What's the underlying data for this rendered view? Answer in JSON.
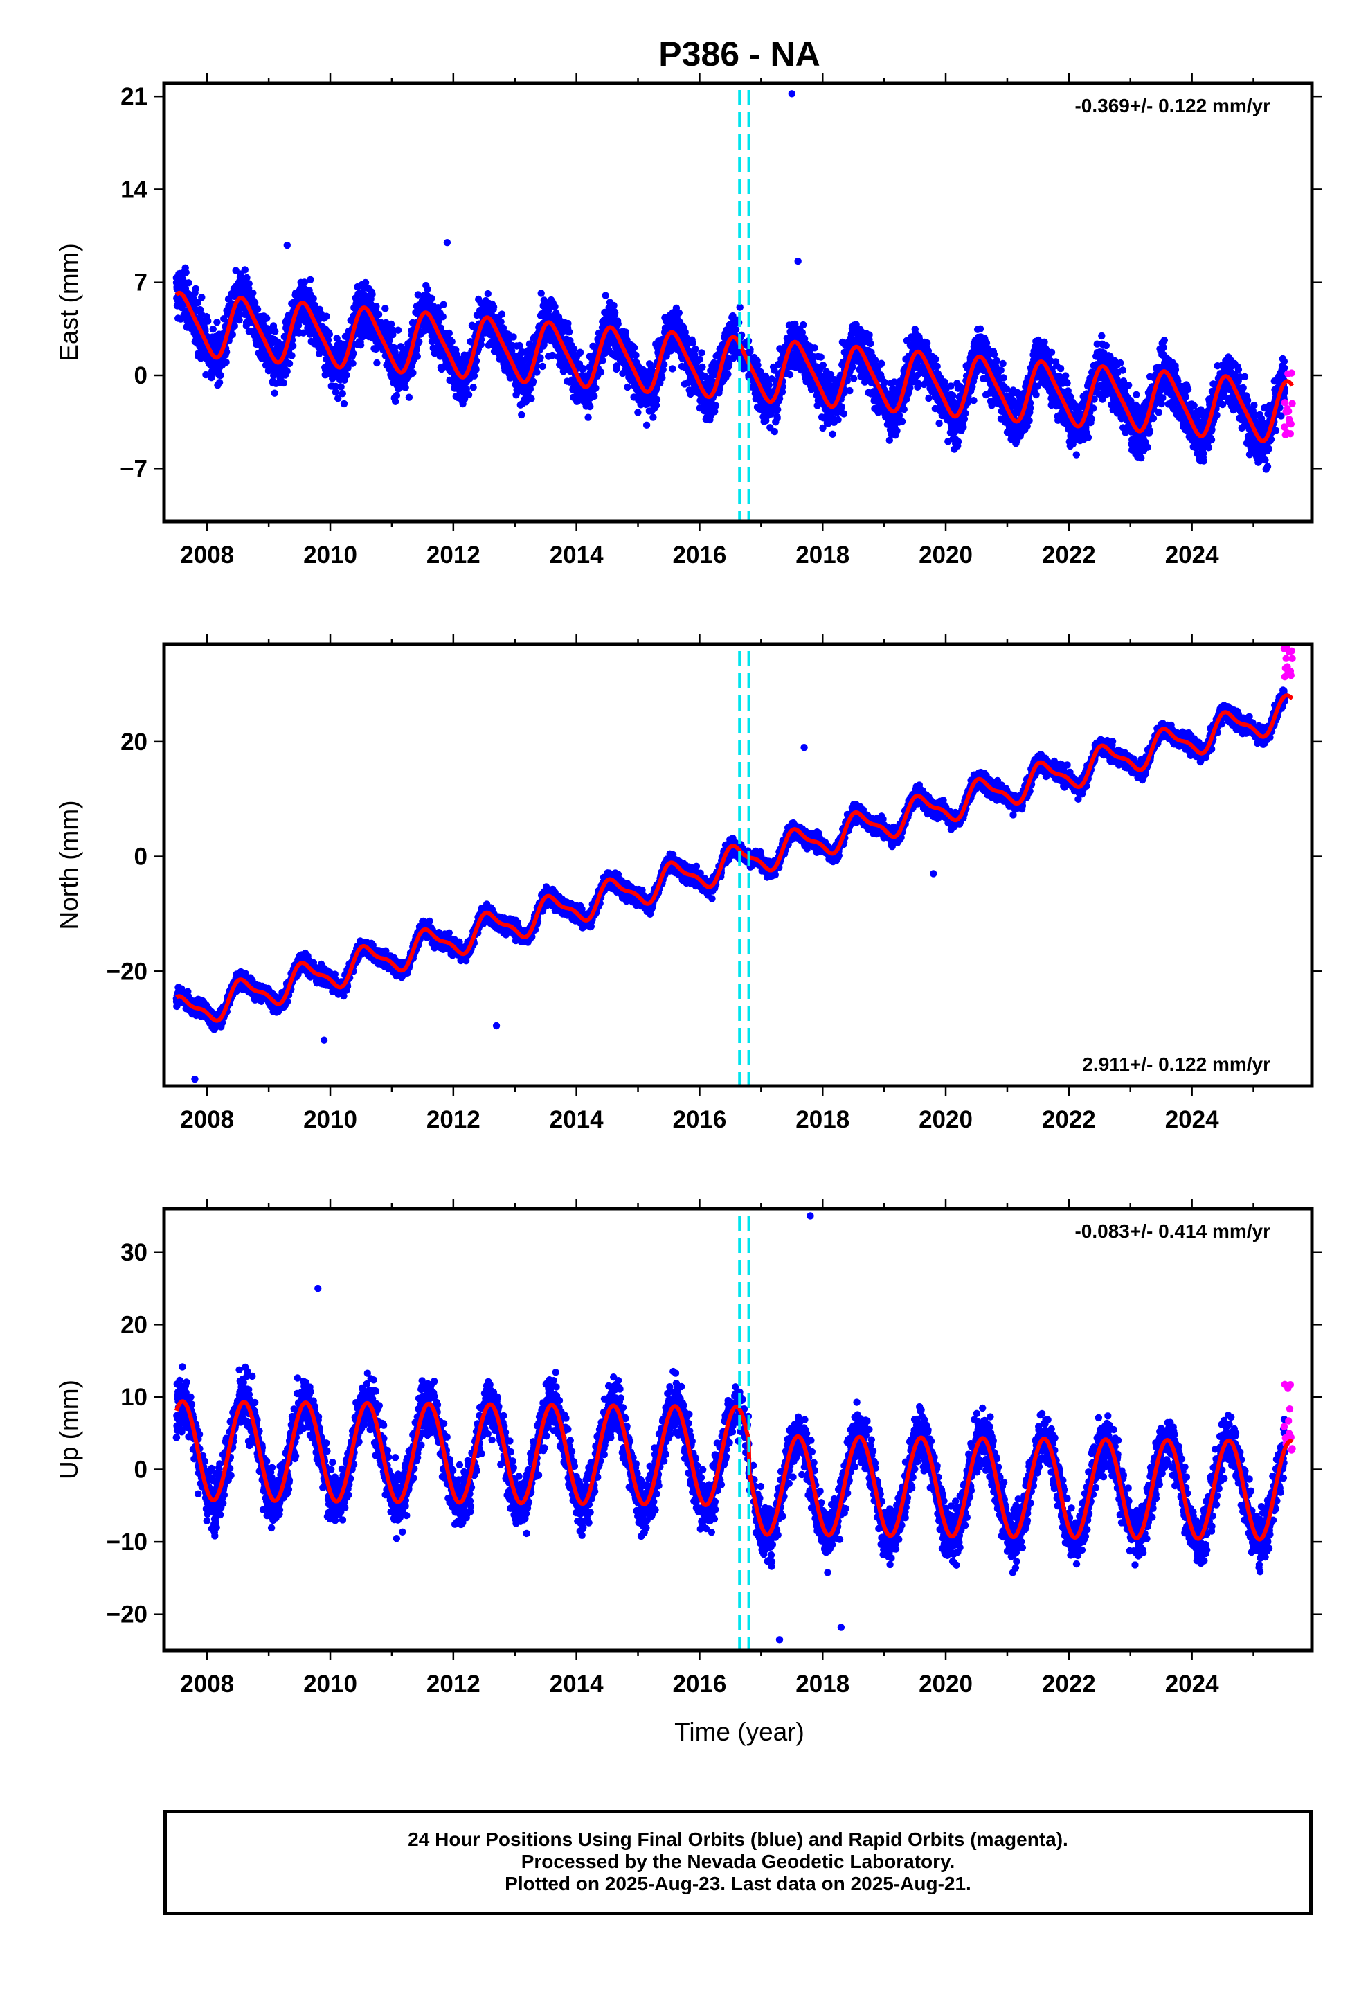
{
  "title": "P386 - NA",
  "xlabel": "Time (year)",
  "footer": {
    "line1": "24 Hour Positions Using Final Orbits (blue) and Rapid Orbits (magenta).",
    "line2": "Processed by the Nevada Geodetic Laboratory.",
    "line3": "Plotted on 2025-Aug-23. Last data on 2025-Aug-21."
  },
  "colors": {
    "final_orbits": "#0000ff",
    "rapid_orbits": "#ff00ff",
    "model_fit": "#ff0000",
    "events": "#00e5ee"
  },
  "chart_data": [
    {
      "type": "scatter",
      "component": "East",
      "ylabel": "East (mm)",
      "rate_label": "-0.369+/- 0.122 mm/yr",
      "rate_position": "top-right",
      "xlim": [
        2007.3,
        2025.95
      ],
      "ylim": [
        -11,
        22
      ],
      "xticks": [
        2008,
        2010,
        2012,
        2014,
        2016,
        2018,
        2020,
        2022,
        2024
      ],
      "yticks": [
        -7,
        0,
        7,
        14,
        21
      ],
      "model": {
        "offset": 3.9,
        "rate": -0.369,
        "t0": 2007.5,
        "amp1": 2.2,
        "amp2": 0.4,
        "x_start": 2007.5,
        "x_end": 2025.63
      },
      "events": [
        2016.65,
        2016.8
      ],
      "scatter_std": 1.9,
      "outliers": [
        [
          2017.5,
          21.2
        ],
        [
          2017.6,
          8.6
        ],
        [
          2009.3,
          9.8
        ],
        [
          2011.9,
          10.0
        ]
      ],
      "rapid_points": {
        "x_start": 2025.5,
        "x_end": 2025.63,
        "y_range": [
          -5.5,
          0.3
        ]
      }
    },
    {
      "type": "scatter",
      "component": "North",
      "ylabel": "North (mm)",
      "rate_label": "2.911+/- 0.122 mm/yr",
      "rate_position": "bottom-right",
      "xlim": [
        2007.3,
        2025.95
      ],
      "ylim": [
        -40,
        37
      ],
      "xticks": [
        2008,
        2010,
        2012,
        2014,
        2016,
        2018,
        2020,
        2022,
        2024
      ],
      "yticks": [
        -20,
        0,
        20
      ],
      "model": {
        "offset": -27.5,
        "rate": 2.911,
        "t0": 2007.5,
        "amp1": 2.6,
        "amp2": 0.9,
        "x_start": 2007.5,
        "x_end": 2025.63
      },
      "events": [
        2016.65,
        2016.8
      ],
      "scatter_std": 1.4,
      "outliers": [
        [
          2007.8,
          -38.8
        ],
        [
          2009.9,
          -32.0
        ],
        [
          2012.7,
          -29.5
        ],
        [
          2017.7,
          19.0
        ],
        [
          2019.8,
          -3.0
        ]
      ],
      "rapid_points": {
        "x_start": 2025.5,
        "x_end": 2025.63,
        "y_range": [
          31.0,
          36.5
        ]
      }
    },
    {
      "type": "scatter",
      "component": "Up",
      "ylabel": "Up (mm)",
      "rate_label": "-0.083+/- 0.414 mm/yr",
      "rate_position": "top-right",
      "xlim": [
        2007.3,
        2025.95
      ],
      "ylim": [
        -25,
        36
      ],
      "xticks": [
        2008,
        2010,
        2012,
        2014,
        2016,
        2018,
        2020,
        2022,
        2024
      ],
      "yticks": [
        -20,
        -10,
        0,
        10,
        20,
        30
      ],
      "model": {
        "offset": 2.6,
        "rate": -0.083,
        "t0": 2007.5,
        "amp1": 6.8,
        "amp2": 0.0,
        "x_start": 2007.5,
        "x_end": 2025.63,
        "step_at": 2016.8,
        "step": -4.0
      },
      "events": [
        2016.65,
        2016.8
      ],
      "scatter_std": 3.6,
      "outliers": [
        [
          2017.8,
          35.0
        ],
        [
          2009.8,
          25.0
        ],
        [
          2017.3,
          -23.5
        ],
        [
          2018.3,
          -21.8
        ]
      ],
      "rapid_points": {
        "x_start": 2025.5,
        "x_end": 2025.63,
        "y_range": [
          1.0,
          12.5
        ]
      }
    }
  ]
}
